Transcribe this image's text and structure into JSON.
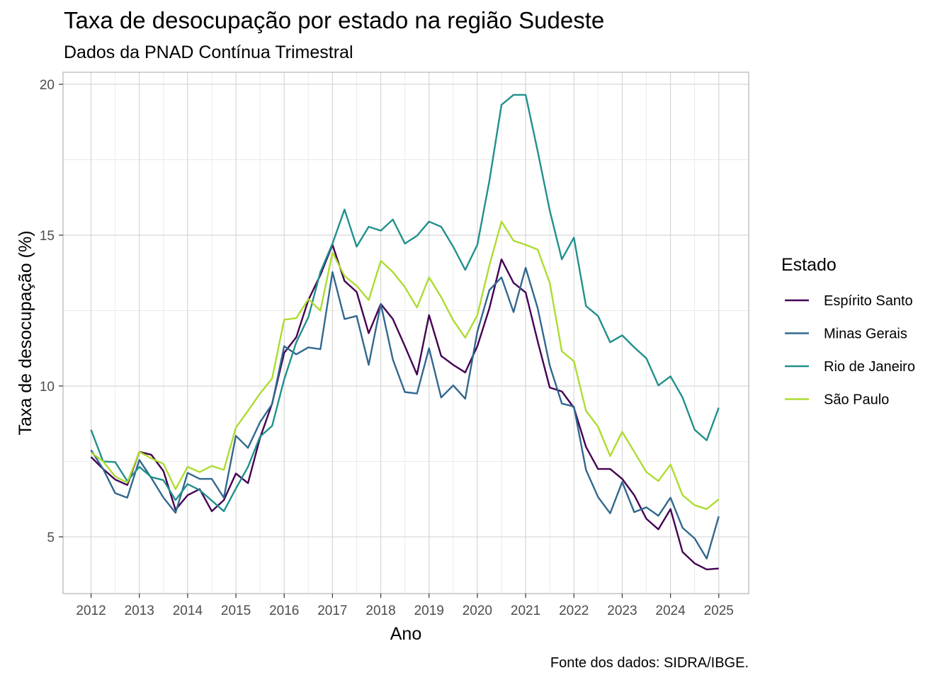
{
  "chart_data": {
    "type": "line",
    "title": "Taxa de desocupação por estado na região Sudeste",
    "subtitle": "Dados da PNAD Contínua Trimestral",
    "xlabel": "Ano",
    "ylabel": "Taxa de desocupação (%)",
    "caption": "Fonte dos dados: SIDRA/IBGE.",
    "legend_title": "Estado",
    "legend_position": "right",
    "grid": true,
    "xlim": [
      2011.42,
      2025.62
    ],
    "ylim": [
      3.12,
      20.4
    ],
    "x_ticks": [
      "2012",
      "2013",
      "2014",
      "2015",
      "2016",
      "2017",
      "2018",
      "2019",
      "2020",
      "2021",
      "2022",
      "2023",
      "2024",
      "2025"
    ],
    "y_ticks": [
      "5",
      "10",
      "15",
      "20"
    ],
    "x": [
      2012,
      2012.25,
      2012.5,
      2012.75,
      2013,
      2013.25,
      2013.5,
      2013.75,
      2014,
      2014.25,
      2014.5,
      2014.75,
      2015,
      2015.25,
      2015.5,
      2015.75,
      2016,
      2016.25,
      2016.5,
      2016.75,
      2017,
      2017.25,
      2017.5,
      2017.75,
      2018,
      2018.25,
      2018.5,
      2018.75,
      2019,
      2019.25,
      2019.5,
      2019.75,
      2020,
      2020.25,
      2020.5,
      2020.75,
      2021,
      2021.25,
      2021.5,
      2021.75,
      2022,
      2022.25,
      2022.5,
      2022.75,
      2023,
      2023.25,
      2023.5,
      2023.75,
      2024,
      2024.25,
      2024.5,
      2024.75,
      2025
    ],
    "series": [
      {
        "name": "Espírito Santo",
        "color": "#440154",
        "values": [
          7.65,
          7.25,
          6.9,
          6.72,
          7.82,
          7.72,
          7.18,
          5.9,
          6.38,
          6.58,
          5.85,
          6.22,
          7.1,
          6.78,
          8.28,
          9.42,
          11.1,
          11.62,
          12.85,
          13.68,
          14.68,
          13.48,
          13.12,
          11.75,
          12.72,
          12.22,
          11.32,
          10.38,
          12.35,
          11.0,
          10.7,
          10.45,
          11.32,
          12.58,
          14.2,
          13.42,
          13.1,
          11.48,
          9.95,
          9.82,
          9.28,
          7.98,
          7.25,
          7.25,
          6.92,
          6.38,
          5.6,
          5.25,
          5.92,
          4.5,
          4.12,
          3.92,
          3.95
        ]
      },
      {
        "name": "Minas Gerais",
        "color": "#31688e",
        "values": [
          7.88,
          7.25,
          6.45,
          6.3,
          7.55,
          6.95,
          6.3,
          5.8,
          7.12,
          6.92,
          6.92,
          6.3,
          8.35,
          7.95,
          8.8,
          9.4,
          11.32,
          11.05,
          11.28,
          11.22,
          13.78,
          12.22,
          12.32,
          10.7,
          12.72,
          10.88,
          9.8,
          9.75,
          11.25,
          9.62,
          10.02,
          9.58,
          11.8,
          13.18,
          13.6,
          12.45,
          13.92,
          12.58,
          10.68,
          9.42,
          9.32,
          7.22,
          6.32,
          5.78,
          6.82,
          5.82,
          5.98,
          5.7,
          6.3,
          5.3,
          4.95,
          4.28,
          5.68
        ]
      },
      {
        "name": "Rio de Janeiro",
        "color": "#21908c",
        "values": [
          8.55,
          7.5,
          7.48,
          6.85,
          7.32,
          6.98,
          6.88,
          6.22,
          6.75,
          6.55,
          6.2,
          5.85,
          6.6,
          7.32,
          8.32,
          8.68,
          10.22,
          11.45,
          12.28,
          13.78,
          14.72,
          15.85,
          14.62,
          15.28,
          15.15,
          15.52,
          14.72,
          14.98,
          15.45,
          15.28,
          14.62,
          13.85,
          14.68,
          16.8,
          19.32,
          19.65,
          19.65,
          17.78,
          15.82,
          14.2,
          14.92,
          12.65,
          12.32,
          11.45,
          11.68,
          11.28,
          10.92,
          10.02,
          10.32,
          9.62,
          8.55,
          8.2,
          9.28
        ]
      },
      {
        "name": "São Paulo",
        "color": "#addc30",
        "values": [
          7.8,
          7.5,
          7.0,
          6.8,
          7.82,
          7.6,
          7.42,
          6.58,
          7.32,
          7.15,
          7.35,
          7.22,
          8.62,
          9.18,
          9.75,
          10.25,
          12.2,
          12.25,
          12.88,
          12.5,
          14.42,
          13.65,
          13.32,
          12.85,
          14.15,
          13.78,
          13.28,
          12.6,
          13.6,
          12.95,
          12.18,
          11.6,
          12.35,
          14.0,
          15.45,
          14.82,
          14.68,
          14.52,
          13.42,
          11.15,
          10.82,
          9.18,
          8.65,
          7.68,
          8.48,
          7.82,
          7.15,
          6.85,
          7.4,
          6.38,
          6.05,
          5.92,
          6.25
        ]
      }
    ]
  }
}
